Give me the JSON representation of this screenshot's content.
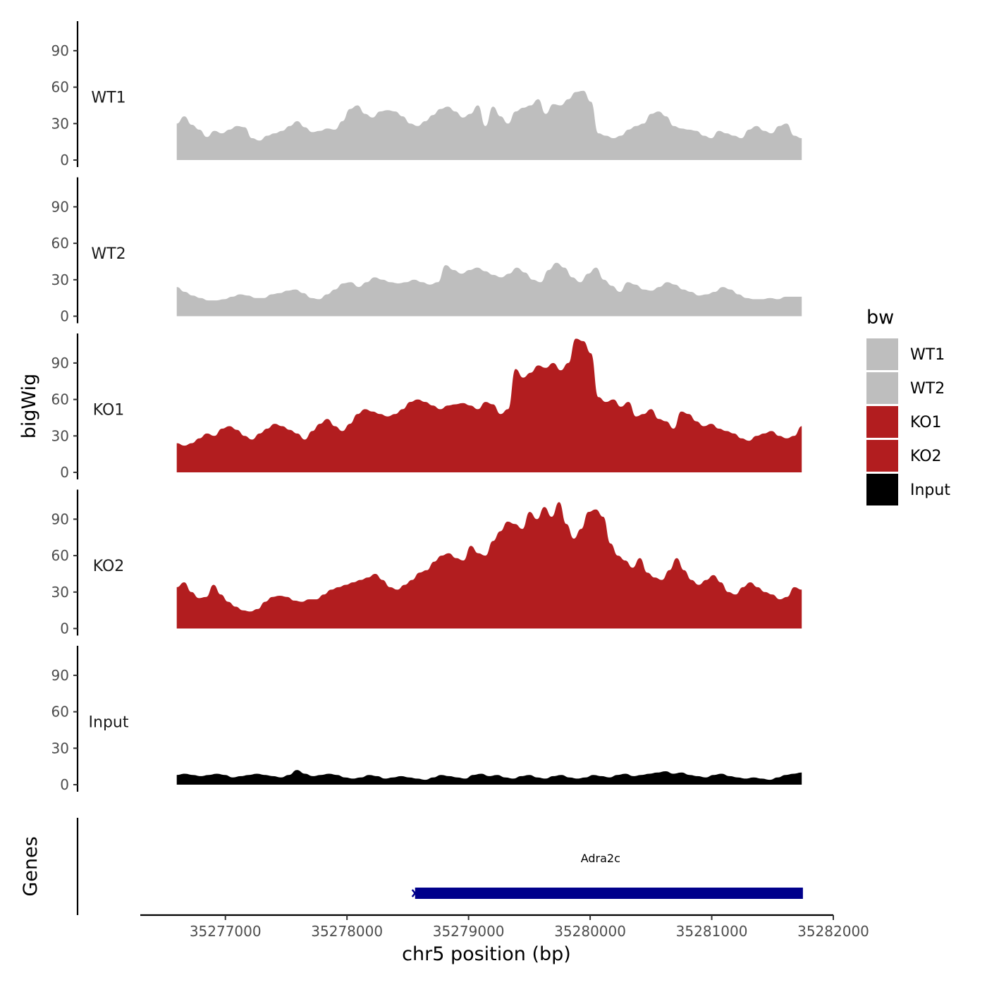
{
  "chart_data": {
    "type": "area",
    "ylabel": "bigWig",
    "xlabel": "chr5 position (bp)",
    "gene_track_label": "Genes",
    "y_ticks": [
      0,
      30,
      60,
      90
    ],
    "y_tick_labels": [
      "0",
      "30",
      "60",
      "90"
    ],
    "ylim": [
      0,
      112
    ],
    "xlim": [
      35276300,
      35282000
    ],
    "x_ticks": [
      35277000,
      35278000,
      35279000,
      35280000,
      35281000,
      35282000
    ],
    "x_tick_labels": [
      "35277000",
      "35278000",
      "35279000",
      "35280000",
      "35281000",
      "35282000"
    ],
    "x_start": 35276600,
    "x_end": 35281740,
    "legend": {
      "title": "bw",
      "entries": [
        {
          "label": "WT1",
          "color": "#bebebe"
        },
        {
          "label": "WT2",
          "color": "#bebebe"
        },
        {
          "label": "KO1",
          "color": "#b21d1f"
        },
        {
          "label": "KO2",
          "color": "#b21d1f"
        },
        {
          "label": "Input",
          "color": "#000000"
        }
      ]
    },
    "series": [
      {
        "name": "WT1",
        "color": "#bebebe",
        "values": [
          30,
          36,
          29,
          25,
          19,
          24,
          22,
          25,
          28,
          27,
          18,
          16,
          20,
          22,
          24,
          28,
          32,
          27,
          23,
          24,
          26,
          25,
          32,
          42,
          45,
          38,
          35,
          40,
          41,
          40,
          36,
          30,
          28,
          32,
          37,
          42,
          44,
          40,
          35,
          38,
          45,
          28,
          44,
          36,
          30,
          40,
          43,
          45,
          50,
          38,
          46,
          45,
          50,
          56,
          57,
          48,
          22,
          20,
          18,
          20,
          25,
          28,
          30,
          38,
          40,
          36,
          28,
          26,
          25,
          24,
          20,
          18,
          24,
          22,
          20,
          18,
          25,
          28,
          24,
          22,
          28,
          30,
          20,
          18
        ]
      },
      {
        "name": "WT2",
        "color": "#bebebe",
        "values": [
          24,
          20,
          17,
          15,
          13,
          13,
          14,
          16,
          18,
          17,
          15,
          15,
          18,
          19,
          21,
          22,
          19,
          15,
          14,
          18,
          22,
          27,
          28,
          24,
          28,
          32,
          30,
          28,
          27,
          28,
          30,
          28,
          26,
          28,
          42,
          38,
          35,
          38,
          40,
          37,
          34,
          32,
          35,
          40,
          36,
          30,
          28,
          38,
          44,
          40,
          32,
          28,
          35,
          40,
          30,
          25,
          20,
          28,
          26,
          22,
          21,
          24,
          28,
          26,
          22,
          20,
          17,
          18,
          20,
          24,
          22,
          18,
          15,
          14,
          14,
          15,
          14,
          16,
          16,
          16
        ]
      },
      {
        "name": "KO1",
        "color": "#b21d1f",
        "values": [
          24,
          22,
          24,
          28,
          32,
          30,
          36,
          38,
          35,
          30,
          27,
          32,
          36,
          40,
          38,
          35,
          32,
          27,
          34,
          40,
          44,
          38,
          34,
          40,
          48,
          52,
          50,
          48,
          46,
          48,
          52,
          58,
          60,
          58,
          55,
          52,
          55,
          56,
          57,
          55,
          52,
          58,
          56,
          48,
          52,
          85,
          78,
          82,
          88,
          86,
          90,
          84,
          90,
          110,
          108,
          98,
          62,
          58,
          60,
          54,
          58,
          46,
          48,
          52,
          44,
          42,
          36,
          50,
          48,
          42,
          38,
          40,
          36,
          34,
          32,
          28,
          26,
          30,
          32,
          34,
          30,
          28,
          30,
          38
        ]
      },
      {
        "name": "KO2",
        "color": "#b21d1f",
        "values": [
          34,
          38,
          30,
          25,
          26,
          36,
          28,
          22,
          18,
          15,
          14,
          16,
          22,
          26,
          27,
          26,
          23,
          22,
          24,
          24,
          28,
          32,
          34,
          36,
          38,
          40,
          42,
          45,
          40,
          34,
          32,
          36,
          40,
          46,
          48,
          55,
          60,
          62,
          58,
          56,
          68,
          62,
          60,
          72,
          80,
          88,
          86,
          82,
          96,
          90,
          100,
          92,
          104,
          86,
          74,
          82,
          96,
          98,
          92,
          70,
          60,
          56,
          50,
          58,
          46,
          42,
          40,
          48,
          58,
          48,
          40,
          36,
          40,
          44,
          38,
          30,
          28,
          34,
          38,
          34,
          30,
          28,
          24,
          26,
          34,
          32
        ]
      },
      {
        "name": "Input",
        "color": "#000000",
        "values": [
          8,
          9,
          8,
          7,
          8,
          9,
          8,
          6,
          7,
          8,
          9,
          8,
          7,
          6,
          8,
          12,
          9,
          7,
          8,
          9,
          8,
          6,
          5,
          6,
          8,
          7,
          5,
          6,
          7,
          6,
          5,
          4,
          6,
          8,
          7,
          6,
          5,
          8,
          9,
          7,
          8,
          6,
          5,
          7,
          8,
          6,
          5,
          7,
          8,
          6,
          5,
          6,
          8,
          7,
          6,
          8,
          9,
          7,
          8,
          9,
          10,
          11,
          9,
          10,
          8,
          7,
          6,
          8,
          9,
          7,
          6,
          5,
          6,
          5,
          4,
          6,
          8,
          9,
          10
        ]
      }
    ],
    "genes": [
      {
        "name": "Adra2c",
        "start": 35278560,
        "end": 35281750,
        "strand": "-",
        "color": "#00008b"
      }
    ]
  }
}
